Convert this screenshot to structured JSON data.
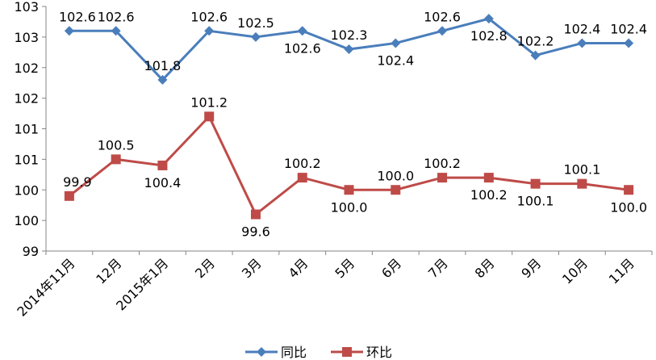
{
  "chart_data": {
    "type": "line",
    "title": "",
    "xlabel": "",
    "ylabel": "",
    "ylim": [
      99,
      103
    ],
    "ytick_step": 0.5,
    "ytick_labels": [
      "99",
      "100",
      "100",
      "101",
      "101",
      "102",
      "102",
      "103",
      "103"
    ],
    "grid": false,
    "legend_position": "bottom",
    "categories": [
      "2014年11月",
      "12月",
      "2015年1月",
      "2月",
      "3月",
      "4月",
      "5月",
      "6月",
      "7月",
      "8月",
      "9月",
      "10月",
      "11月"
    ],
    "series": [
      {
        "name": "同比",
        "color": "#4a7ebb",
        "marker": "diamond",
        "values": [
          102.6,
          102.6,
          101.8,
          102.6,
          102.5,
          102.6,
          102.3,
          102.4,
          102.6,
          102.8,
          102.2,
          102.4,
          102.4
        ],
        "labels": [
          "102.6",
          "102.6",
          "101.8",
          "102.6",
          "102.5",
          "102.6",
          "102.3",
          "102.4",
          "102.6",
          "102.8",
          "102.2",
          "102.4",
          "102.4"
        ]
      },
      {
        "name": "环比",
        "color": "#be4b48",
        "marker": "square",
        "values": [
          99.9,
          100.5,
          100.4,
          101.2,
          99.6,
          100.2,
          100.0,
          100.0,
          100.2,
          100.2,
          100.1,
          100.1,
          100.0
        ],
        "labels": [
          "99.9",
          "100.5",
          "100.4",
          "101.2",
          "99.6",
          "100.2",
          "100.0",
          "100.0",
          "100.2",
          "100.2",
          "100.1",
          "100.1",
          "100.0"
        ]
      }
    ]
  }
}
